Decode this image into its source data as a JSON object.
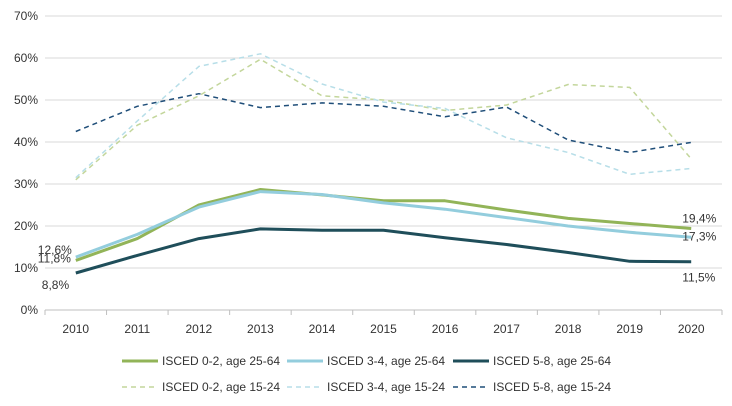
{
  "chart_data": {
    "type": "line",
    "x": [
      "2010",
      "2011",
      "2012",
      "2013",
      "2014",
      "2015",
      "2016",
      "2017",
      "2018",
      "2019",
      "2020"
    ],
    "ylim": [
      0,
      70
    ],
    "yticks": [
      "0%",
      "10%",
      "20%",
      "30%",
      "40%",
      "50%",
      "60%",
      "70%"
    ],
    "grid": true,
    "legend_position": "bottom",
    "series": [
      {
        "name": "ISCED 0-2, age 25-64",
        "color": "#92b458",
        "style": "solid",
        "values": [
          11.8,
          17,
          25,
          28.7,
          27.4,
          26,
          26,
          23.8,
          21.8,
          20.6,
          19.4
        ]
      },
      {
        "name": "ISCED 3-4, age 25-64",
        "color": "#93cddd",
        "style": "solid",
        "values": [
          12.6,
          18,
          24.5,
          28.2,
          27.5,
          25.5,
          24,
          22,
          20,
          18.5,
          17.3
        ]
      },
      {
        "name": "ISCED 5-8, age 25-64",
        "color": "#1f4e5a",
        "style": "solid",
        "values": [
          8.8,
          13,
          17,
          19.3,
          19,
          19,
          17.2,
          15.6,
          13.7,
          11.6,
          11.5
        ]
      },
      {
        "name": "ISCED 0-2, age 15-24",
        "color": "#c3d69b",
        "style": "dashed",
        "values": [
          31,
          44,
          51,
          59.7,
          51,
          50,
          47.5,
          48.8,
          53.7,
          53,
          36
        ]
      },
      {
        "name": "ISCED 3-4, age 15-24",
        "color": "#b7dee8",
        "style": "dashed",
        "values": [
          31.5,
          45,
          58,
          61,
          53.8,
          49.5,
          48,
          41,
          37.5,
          32.3,
          33.7
        ]
      },
      {
        "name": "ISCED 5-8, age 15-24",
        "color": "#1f4e79",
        "style": "dashed",
        "values": [
          42.5,
          48.5,
          51.5,
          48.2,
          49.3,
          48.5,
          46,
          48.3,
          40.5,
          37.5,
          39.9
        ]
      }
    ],
    "data_labels": [
      {
        "series": 0,
        "index": 0,
        "text": "11,8%"
      },
      {
        "series": 1,
        "index": 0,
        "text": "12,6%"
      },
      {
        "series": 2,
        "index": 0,
        "text": "8,8%"
      },
      {
        "series": 0,
        "index": 10,
        "text": "19,4%"
      },
      {
        "series": 1,
        "index": 10,
        "text": "17,3%"
      },
      {
        "series": 2,
        "index": 10,
        "text": "11,5%"
      }
    ]
  }
}
